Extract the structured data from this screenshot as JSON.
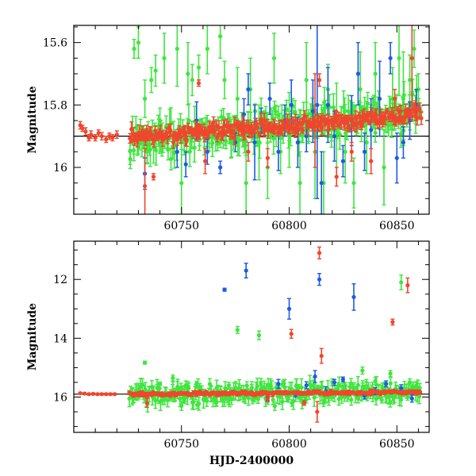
{
  "chart_data": [
    {
      "type": "scatter",
      "title": "",
      "xlabel": "",
      "ylabel": "Magnitude",
      "xlim": [
        60700,
        60865
      ],
      "ylim": [
        16.15,
        15.545
      ],
      "y_inverted": true,
      "x_ticks": [
        60750,
        60800,
        60850
      ],
      "y_ticks": [
        15.6,
        15.8,
        16.0
      ],
      "y_tick_labels": [
        "15.6",
        "15.8",
        "16"
      ],
      "reference_line": 15.9,
      "grid": false,
      "legend": "none",
      "series": [
        {
          "color": "#3ee63e",
          "dense": {
            "x_start": 60726,
            "x_end": 60861,
            "y_start": 15.92,
            "y_end": 15.82,
            "scatter": 0.045
          },
          "points": [
            {
              "x": 60728,
              "y": 15.62,
              "err": 0.03
            },
            {
              "x": 60730,
              "y": 15.6,
              "err": 0.05
            },
            {
              "x": 60733,
              "y": 15.78,
              "err": 0.06
            },
            {
              "x": 60736,
              "y": 15.72,
              "err": 0.04
            },
            {
              "x": 60738,
              "y": 15.69,
              "err": 0.05
            },
            {
              "x": 60740,
              "y": 15.85,
              "err": 0.04
            },
            {
              "x": 60742,
              "y": 15.65,
              "err": 0.08
            },
            {
              "x": 60748,
              "y": 15.62,
              "err": 0.12
            },
            {
              "x": 60750,
              "y": 16.05,
              "err": 0.15
            },
            {
              "x": 60753,
              "y": 15.7,
              "err": 0.1
            },
            {
              "x": 60755,
              "y": 15.72,
              "err": 0.05
            },
            {
              "x": 60758,
              "y": 15.68,
              "err": 0.04
            },
            {
              "x": 60762,
              "y": 15.62,
              "err": 0.08
            },
            {
              "x": 60768,
              "y": 15.58,
              "err": 0.07
            },
            {
              "x": 60770,
              "y": 15.72,
              "err": 0.06
            },
            {
              "x": 60773,
              "y": 15.92,
              "err": 0.05
            },
            {
              "x": 60776,
              "y": 15.78,
              "err": 0.1
            },
            {
              "x": 60780,
              "y": 16.05,
              "err": 0.12
            },
            {
              "x": 60782,
              "y": 15.75,
              "err": 0.1
            },
            {
              "x": 60786,
              "y": 15.92,
              "err": 0.12
            },
            {
              "x": 60790,
              "y": 16.0,
              "err": 0.1
            },
            {
              "x": 60793,
              "y": 15.65,
              "err": 0.08
            },
            {
              "x": 60796,
              "y": 15.95,
              "err": 0.07
            },
            {
              "x": 60800,
              "y": 15.88,
              "err": 0.12
            },
            {
              "x": 60805,
              "y": 16.05,
              "err": 0.1
            },
            {
              "x": 60808,
              "y": 15.72,
              "err": 0.12
            },
            {
              "x": 60812,
              "y": 15.95,
              "err": 0.15
            },
            {
              "x": 60816,
              "y": 16.05,
              "err": 0.1
            },
            {
              "x": 60818,
              "y": 15.75,
              "err": 0.08
            },
            {
              "x": 60822,
              "y": 15.88,
              "err": 0.15
            },
            {
              "x": 60826,
              "y": 15.95,
              "err": 0.1
            },
            {
              "x": 60830,
              "y": 16.05,
              "err": 0.08
            },
            {
              "x": 60833,
              "y": 15.75,
              "err": 0.12
            },
            {
              "x": 60836,
              "y": 15.92,
              "err": 0.1
            },
            {
              "x": 60840,
              "y": 15.7,
              "err": 0.1
            },
            {
              "x": 60844,
              "y": 16.0,
              "err": 0.12
            },
            {
              "x": 60848,
              "y": 15.78,
              "err": 0.1
            },
            {
              "x": 60851,
              "y": 15.65,
              "err": 0.12
            },
            {
              "x": 60853,
              "y": 15.78,
              "err": 0.15
            },
            {
              "x": 60856,
              "y": 15.72,
              "err": 0.08
            },
            {
              "x": 60858,
              "y": 15.62,
              "err": 0.06
            },
            {
              "x": 60860,
              "y": 15.75,
              "err": 0.05
            }
          ]
        },
        {
          "color": "#1e5ae6",
          "points": [
            {
              "x": 60733,
              "y": 16.02,
              "err": 0.05
            },
            {
              "x": 60748,
              "y": 15.95,
              "err": 0.05
            },
            {
              "x": 60752,
              "y": 15.99,
              "err": 0.04
            },
            {
              "x": 60757,
              "y": 15.85,
              "err": 0.06
            },
            {
              "x": 60762,
              "y": 15.95,
              "err": 0.04
            },
            {
              "x": 60768,
              "y": 16.0,
              "err": 0.02
            },
            {
              "x": 60775,
              "y": 15.92,
              "err": 0.03
            },
            {
              "x": 60779,
              "y": 15.83,
              "err": 0.05
            },
            {
              "x": 60781,
              "y": 15.75,
              "err": 0.05
            },
            {
              "x": 60784,
              "y": 15.92,
              "err": 0.12
            },
            {
              "x": 60787,
              "y": 15.85,
              "err": 0.04
            },
            {
              "x": 60791,
              "y": 15.78,
              "err": 0.05
            },
            {
              "x": 60795,
              "y": 15.95,
              "err": 0.06
            },
            {
              "x": 60798,
              "y": 15.85,
              "err": 0.05
            },
            {
              "x": 60801,
              "y": 15.8,
              "err": 0.08
            },
            {
              "x": 60804,
              "y": 15.92,
              "err": 0.08
            },
            {
              "x": 60808,
              "y": 15.9,
              "err": 0.05
            },
            {
              "x": 60811,
              "y": 15.82,
              "err": 0.1
            },
            {
              "x": 60813,
              "y": 15.8,
              "err": 0.3
            },
            {
              "x": 60815,
              "y": 16.05,
              "err": 0.1
            },
            {
              "x": 60818,
              "y": 15.8,
              "err": 0.12
            },
            {
              "x": 60821,
              "y": 15.9,
              "err": 0.08
            },
            {
              "x": 60825,
              "y": 15.98,
              "err": 0.05
            },
            {
              "x": 60829,
              "y": 15.85,
              "err": 0.08
            },
            {
              "x": 60832,
              "y": 15.7,
              "err": 0.1
            },
            {
              "x": 60835,
              "y": 15.95,
              "err": 0.06
            },
            {
              "x": 60838,
              "y": 15.88,
              "err": 0.1
            },
            {
              "x": 60842,
              "y": 15.78,
              "err": 0.12
            },
            {
              "x": 60847,
              "y": 15.65,
              "err": 0.05
            },
            {
              "x": 60850,
              "y": 15.97,
              "err": 0.08
            },
            {
              "x": 60853,
              "y": 15.92,
              "err": 0.05
            },
            {
              "x": 60856,
              "y": 15.85,
              "err": 0.06
            },
            {
              "x": 60859,
              "y": 15.8,
              "err": 0.05
            }
          ]
        },
        {
          "color": "#f0462d",
          "dense": {
            "x_start": 60726,
            "x_end": 60861,
            "y_start": 15.905,
            "y_end": 15.83,
            "scatter": 0.02
          },
          "points": [
            {
              "x": 60703,
              "y": 15.865,
              "err": 0.012
            },
            {
              "x": 60704,
              "y": 15.875,
              "err": 0.01
            },
            {
              "x": 60705.5,
              "y": 15.885,
              "err": 0.012
            },
            {
              "x": 60707,
              "y": 15.905,
              "err": 0.01
            },
            {
              "x": 60708,
              "y": 15.895,
              "err": 0.012
            },
            {
              "x": 60710,
              "y": 15.905,
              "err": 0.01
            },
            {
              "x": 60711.5,
              "y": 15.89,
              "err": 0.01
            },
            {
              "x": 60713,
              "y": 15.9,
              "err": 0.012
            },
            {
              "x": 60715,
              "y": 15.91,
              "err": 0.01
            },
            {
              "x": 60716.5,
              "y": 15.9,
              "err": 0.01
            },
            {
              "x": 60718,
              "y": 15.905,
              "err": 0.01
            },
            {
              "x": 60720,
              "y": 15.895,
              "err": 0.012
            },
            {
              "x": 60733,
              "y": 16.06,
              "err": 0.12
            },
            {
              "x": 60737,
              "y": 16.03,
              "err": 0.01
            },
            {
              "x": 60758,
              "y": 15.73,
              "err": 0.01
            },
            {
              "x": 60761,
              "y": 15.98,
              "err": 0.04
            },
            {
              "x": 60781,
              "y": 15.95,
              "err": 0.03
            },
            {
              "x": 60790,
              "y": 15.97,
              "err": 0.03
            },
            {
              "x": 60803,
              "y": 15.85,
              "err": 0.02
            },
            {
              "x": 60812,
              "y": 15.85,
              "err": 0.15
            },
            {
              "x": 60814,
              "y": 15.72,
              "err": 0.02
            },
            {
              "x": 60822,
              "y": 16.03,
              "err": 0.03
            },
            {
              "x": 60829,
              "y": 15.95,
              "err": 0.03
            },
            {
              "x": 60838,
              "y": 15.98,
              "err": 0.04
            },
            {
              "x": 60849,
              "y": 15.78,
              "err": 0.03
            },
            {
              "x": 60857,
              "y": 15.65,
              "err": 0.15
            }
          ]
        }
      ]
    },
    {
      "type": "scatter",
      "title": "",
      "xlabel": "HJD-2400000",
      "ylabel": "Magnitude",
      "xlim": [
        60700,
        60865
      ],
      "ylim": [
        17.2,
        10.7
      ],
      "y_inverted": true,
      "x_ticks": [
        60750,
        60800,
        60850
      ],
      "y_ticks": [
        12,
        14,
        16
      ],
      "y_tick_labels": [
        "12",
        "14",
        "16"
      ],
      "reference_line": 15.9,
      "grid": false,
      "legend": "none",
      "series": [
        {
          "color": "#3ee63e",
          "dense": {
            "x_start": 60726,
            "x_end": 60861,
            "y_start": 15.92,
            "y_end": 15.82,
            "scatter": 0.25
          },
          "points": [
            {
              "x": 60733,
              "y": 14.83,
              "err": 0.05
            },
            {
              "x": 60740,
              "y": 15.55,
              "err": 0.06
            },
            {
              "x": 60746,
              "y": 15.35,
              "err": 0.1
            },
            {
              "x": 60750,
              "y": 16.3,
              "err": 0.15
            },
            {
              "x": 60752,
              "y": 15.6,
              "err": 0.15
            },
            {
              "x": 60757,
              "y": 15.55,
              "err": 0.08
            },
            {
              "x": 60766,
              "y": 16.2,
              "err": 0.12
            },
            {
              "x": 60772,
              "y": 15.6,
              "err": 0.1
            },
            {
              "x": 60776,
              "y": 13.72,
              "err": 0.12
            },
            {
              "x": 60786,
              "y": 13.9,
              "err": 0.15
            },
            {
              "x": 60790,
              "y": 16.15,
              "err": 0.1
            },
            {
              "x": 60797,
              "y": 15.55,
              "err": 0.1
            },
            {
              "x": 60805,
              "y": 16.0,
              "err": 0.15
            },
            {
              "x": 60810,
              "y": 15.6,
              "err": 0.15
            },
            {
              "x": 60816,
              "y": 16.2,
              "err": 0.12
            },
            {
              "x": 60820,
              "y": 15.5,
              "err": 0.12
            },
            {
              "x": 60826,
              "y": 15.6,
              "err": 0.1
            },
            {
              "x": 60834,
              "y": 15.1,
              "err": 0.12
            },
            {
              "x": 60840,
              "y": 15.45,
              "err": 0.12
            },
            {
              "x": 60843,
              "y": 16.1,
              "err": 0.1
            },
            {
              "x": 60847,
              "y": 15.2,
              "err": 0.1
            },
            {
              "x": 60852,
              "y": 12.1,
              "err": 0.25
            },
            {
              "x": 60856,
              "y": 15.5,
              "err": 0.12
            },
            {
              "x": 60859,
              "y": 15.6,
              "err": 0.1
            }
          ]
        },
        {
          "color": "#1e5ae6",
          "points": [
            {
              "x": 60770,
              "y": 12.35,
              "err": 0.05
            },
            {
              "x": 60780,
              "y": 11.7,
              "err": 0.25
            },
            {
              "x": 60790,
              "y": 16.0,
              "err": 0.12
            },
            {
              "x": 60795,
              "y": 15.55,
              "err": 0.15
            },
            {
              "x": 60800,
              "y": 13.0,
              "err": 0.35
            },
            {
              "x": 60803,
              "y": 15.9,
              "err": 0.1
            },
            {
              "x": 60808,
              "y": 15.6,
              "err": 0.12
            },
            {
              "x": 60812,
              "y": 15.3,
              "err": 0.2
            },
            {
              "x": 60814,
              "y": 12.0,
              "err": 0.2
            },
            {
              "x": 60817,
              "y": 15.8,
              "err": 0.15
            },
            {
              "x": 60821,
              "y": 15.5,
              "err": 0.1
            },
            {
              "x": 60825,
              "y": 15.4,
              "err": 0.08
            },
            {
              "x": 60830,
              "y": 12.6,
              "err": 0.45
            },
            {
              "x": 60835,
              "y": 15.95,
              "err": 0.12
            },
            {
              "x": 60840,
              "y": 15.8,
              "err": 0.12
            },
            {
              "x": 60845,
              "y": 15.55,
              "err": 0.1
            },
            {
              "x": 60852,
              "y": 15.7,
              "err": 0.12
            },
            {
              "x": 60857,
              "y": 16.05,
              "err": 0.12
            }
          ]
        },
        {
          "color": "#f0462d",
          "dense": {
            "x_start": 60726,
            "x_end": 60861,
            "y_start": 15.905,
            "y_end": 15.83,
            "scatter": 0.05
          },
          "points": [
            {
              "x": 60703,
              "y": 15.87,
              "err": 0.03
            },
            {
              "x": 60705,
              "y": 15.88,
              "err": 0.03
            },
            {
              "x": 60707,
              "y": 15.9,
              "err": 0.03
            },
            {
              "x": 60709,
              "y": 15.89,
              "err": 0.03
            },
            {
              "x": 60711,
              "y": 15.9,
              "err": 0.03
            },
            {
              "x": 60713,
              "y": 15.9,
              "err": 0.03
            },
            {
              "x": 60715,
              "y": 15.9,
              "err": 0.03
            },
            {
              "x": 60717,
              "y": 15.9,
              "err": 0.03
            },
            {
              "x": 60719,
              "y": 15.9,
              "err": 0.03
            },
            {
              "x": 60734,
              "y": 16.2,
              "err": 0.15
            },
            {
              "x": 60790,
              "y": 16.05,
              "err": 0.1
            },
            {
              "x": 60801,
              "y": 13.85,
              "err": 0.15
            },
            {
              "x": 60807,
              "y": 16.2,
              "err": 0.08
            },
            {
              "x": 60813,
              "y": 16.5,
              "err": 0.35
            },
            {
              "x": 60814,
              "y": 11.1,
              "err": 0.2
            },
            {
              "x": 60815,
              "y": 14.6,
              "err": 0.25
            },
            {
              "x": 60848,
              "y": 13.45,
              "err": 0.1
            },
            {
              "x": 60855,
              "y": 12.2,
              "err": 0.25
            }
          ]
        }
      ]
    }
  ]
}
